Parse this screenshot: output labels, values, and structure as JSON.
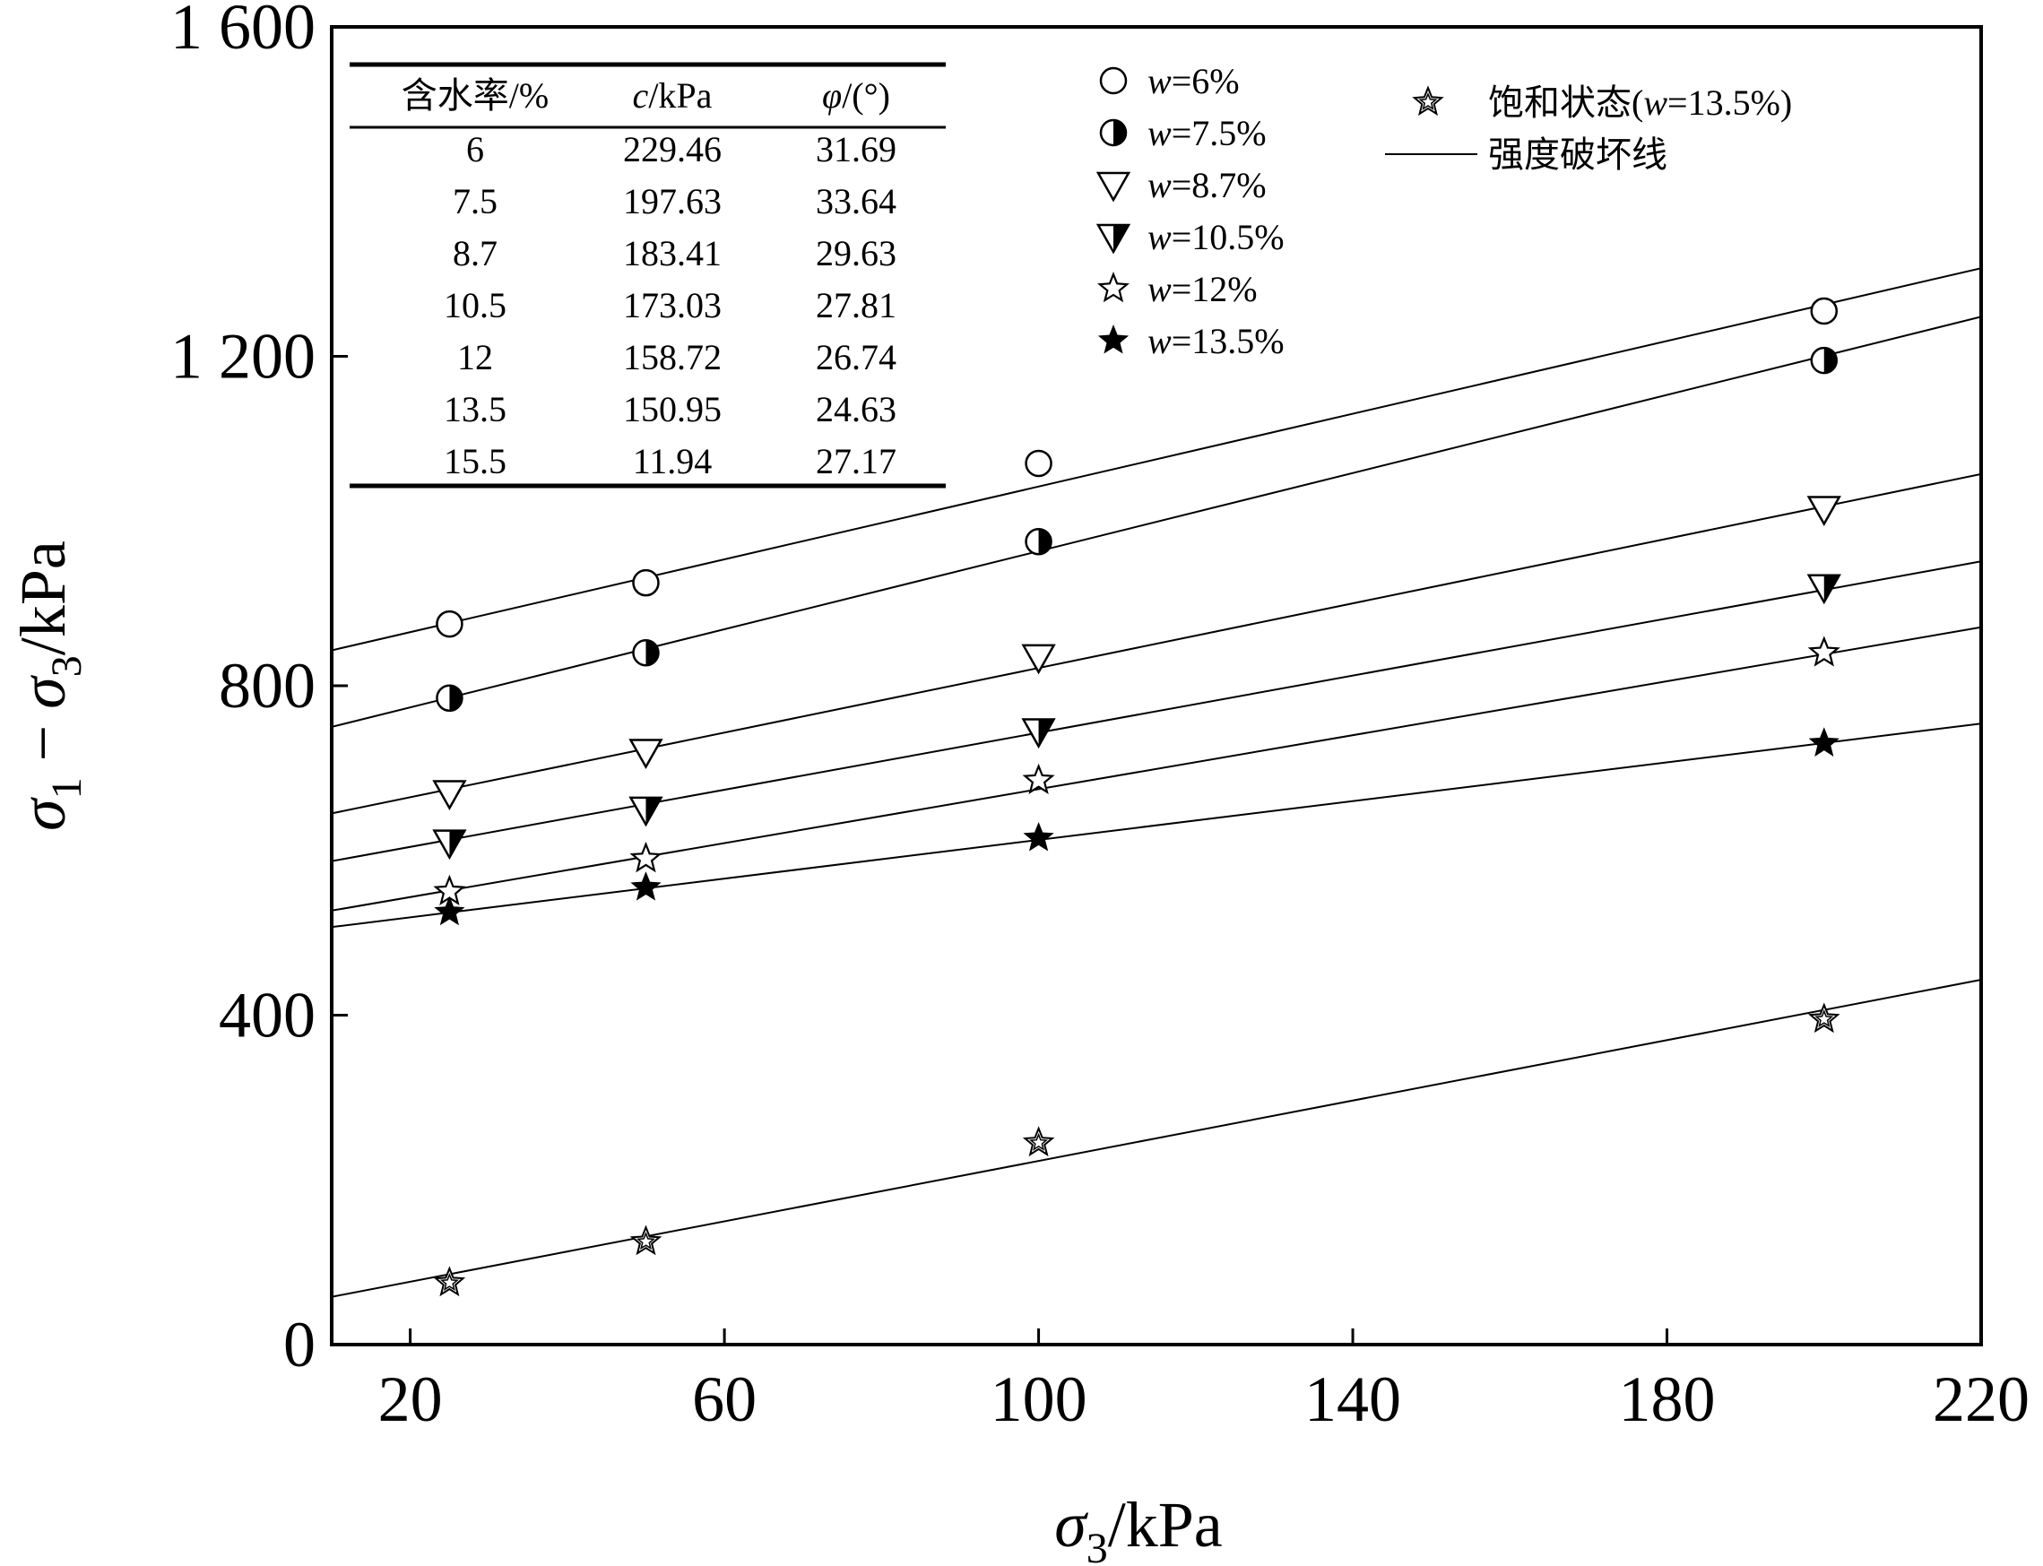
{
  "chart_data": {
    "type": "scatter",
    "xlabel": "σ3/kPa",
    "ylabel": "σ1 − σ3/kPa",
    "xlim": [
      10,
      220
    ],
    "ylim": [
      0,
      1600
    ],
    "x_ticks": [
      20,
      60,
      100,
      140,
      180,
      220
    ],
    "y_ticks": [
      0,
      400,
      800,
      1200,
      1600
    ],
    "x_tick_labels": [
      "20",
      "60",
      "100",
      "140",
      "180",
      "220"
    ],
    "y_tick_labels": [
      "0",
      "400",
      "800",
      "1 200",
      "1 600"
    ],
    "grid": false,
    "legend_position": "top-right",
    "legend_line_label": "强度破坏线",
    "series": [
      {
        "name": "w=6%",
        "marker": "circle-open",
        "x": [
          25,
          50,
          100,
          200
        ],
        "y": [
          875,
          925,
          1070,
          1255
        ],
        "fit_at_xmin": 843,
        "fit_at_xmax": 1307
      },
      {
        "name": "w=7.5%",
        "marker": "circle-half",
        "x": [
          25,
          50,
          100,
          200
        ],
        "y": [
          785,
          840,
          975,
          1195
        ],
        "fit_at_xmin": 750,
        "fit_at_xmax": 1248
      },
      {
        "name": "w=8.7%",
        "marker": "triangle-down-open",
        "x": [
          25,
          50,
          100,
          200
        ],
        "y": [
          670,
          720,
          835,
          1015
        ],
        "fit_at_xmin": 645,
        "fit_at_xmax": 1057
      },
      {
        "name": "w=10.5%",
        "marker": "triangle-down-half",
        "x": [
          25,
          50,
          100,
          200
        ],
        "y": [
          610,
          650,
          745,
          920
        ],
        "fit_at_xmin": 587,
        "fit_at_xmax": 951
      },
      {
        "name": "w=12%",
        "marker": "star-open",
        "x": [
          25,
          50,
          100,
          200
        ],
        "y": [
          550,
          590,
          685,
          840
        ],
        "fit_at_xmin": 527,
        "fit_at_xmax": 871
      },
      {
        "name": "w=13.5%",
        "marker": "star-filled",
        "x": [
          25,
          50,
          100,
          200
        ],
        "y": [
          525,
          555,
          615,
          730
        ],
        "fit_at_xmin": 507,
        "fit_at_xmax": 754
      },
      {
        "name": "饱和状态(w=13.5%)",
        "marker": "star-double",
        "x": [
          25,
          50,
          100,
          200
        ],
        "y": [
          75,
          125,
          245,
          395
        ],
        "fit_at_xmin": 58,
        "fit_at_xmax": 443
      }
    ],
    "table": {
      "headers": [
        "含水率/%",
        "c/kPa",
        "φ/(°)"
      ],
      "rows": [
        [
          "6",
          "229.46",
          "31.69"
        ],
        [
          "7.5",
          "197.63",
          "33.64"
        ],
        [
          "8.7",
          "183.41",
          "29.63"
        ],
        [
          "10.5",
          "173.03",
          "27.81"
        ],
        [
          "12",
          "158.72",
          "26.74"
        ],
        [
          "13.5",
          "150.95",
          "24.63"
        ],
        [
          "15.5",
          "11.94",
          "27.17"
        ]
      ]
    }
  }
}
